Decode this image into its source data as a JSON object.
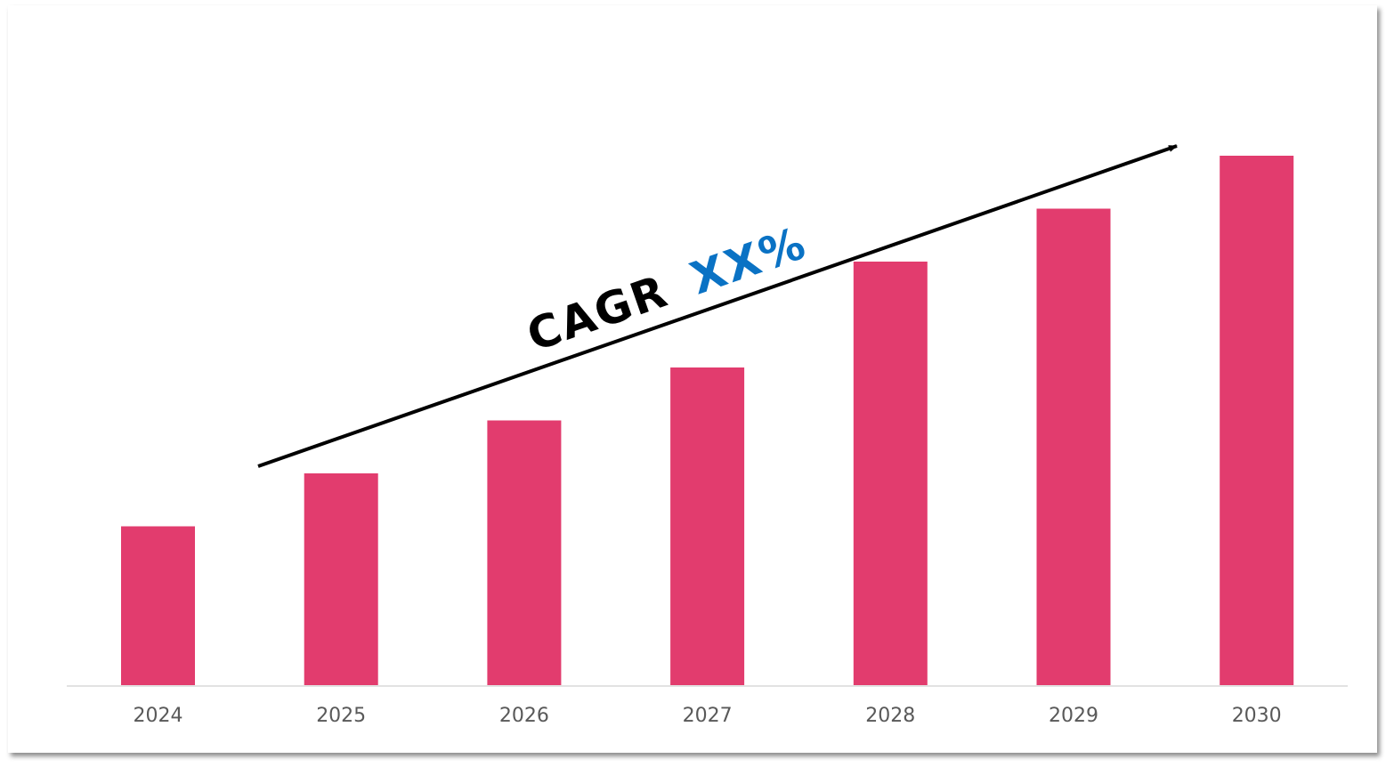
{
  "chart_data": {
    "type": "bar",
    "categories": [
      "2024",
      "2025",
      "2026",
      "2027",
      "2028",
      "2029",
      "2030"
    ],
    "values": [
      30,
      40,
      50,
      60,
      80,
      90,
      100
    ],
    "title": "",
    "xlabel": "",
    "ylabel": "",
    "ylim": [
      0,
      100
    ],
    "grid": false,
    "bar_color": "#e23c6e",
    "annotation": {
      "prefix": "CAGR",
      "value": "XX%",
      "prefix_color": "#000000",
      "value_color": "#0a72c4",
      "arrow": "trend arrow rising from 2025 to 2030"
    }
  }
}
